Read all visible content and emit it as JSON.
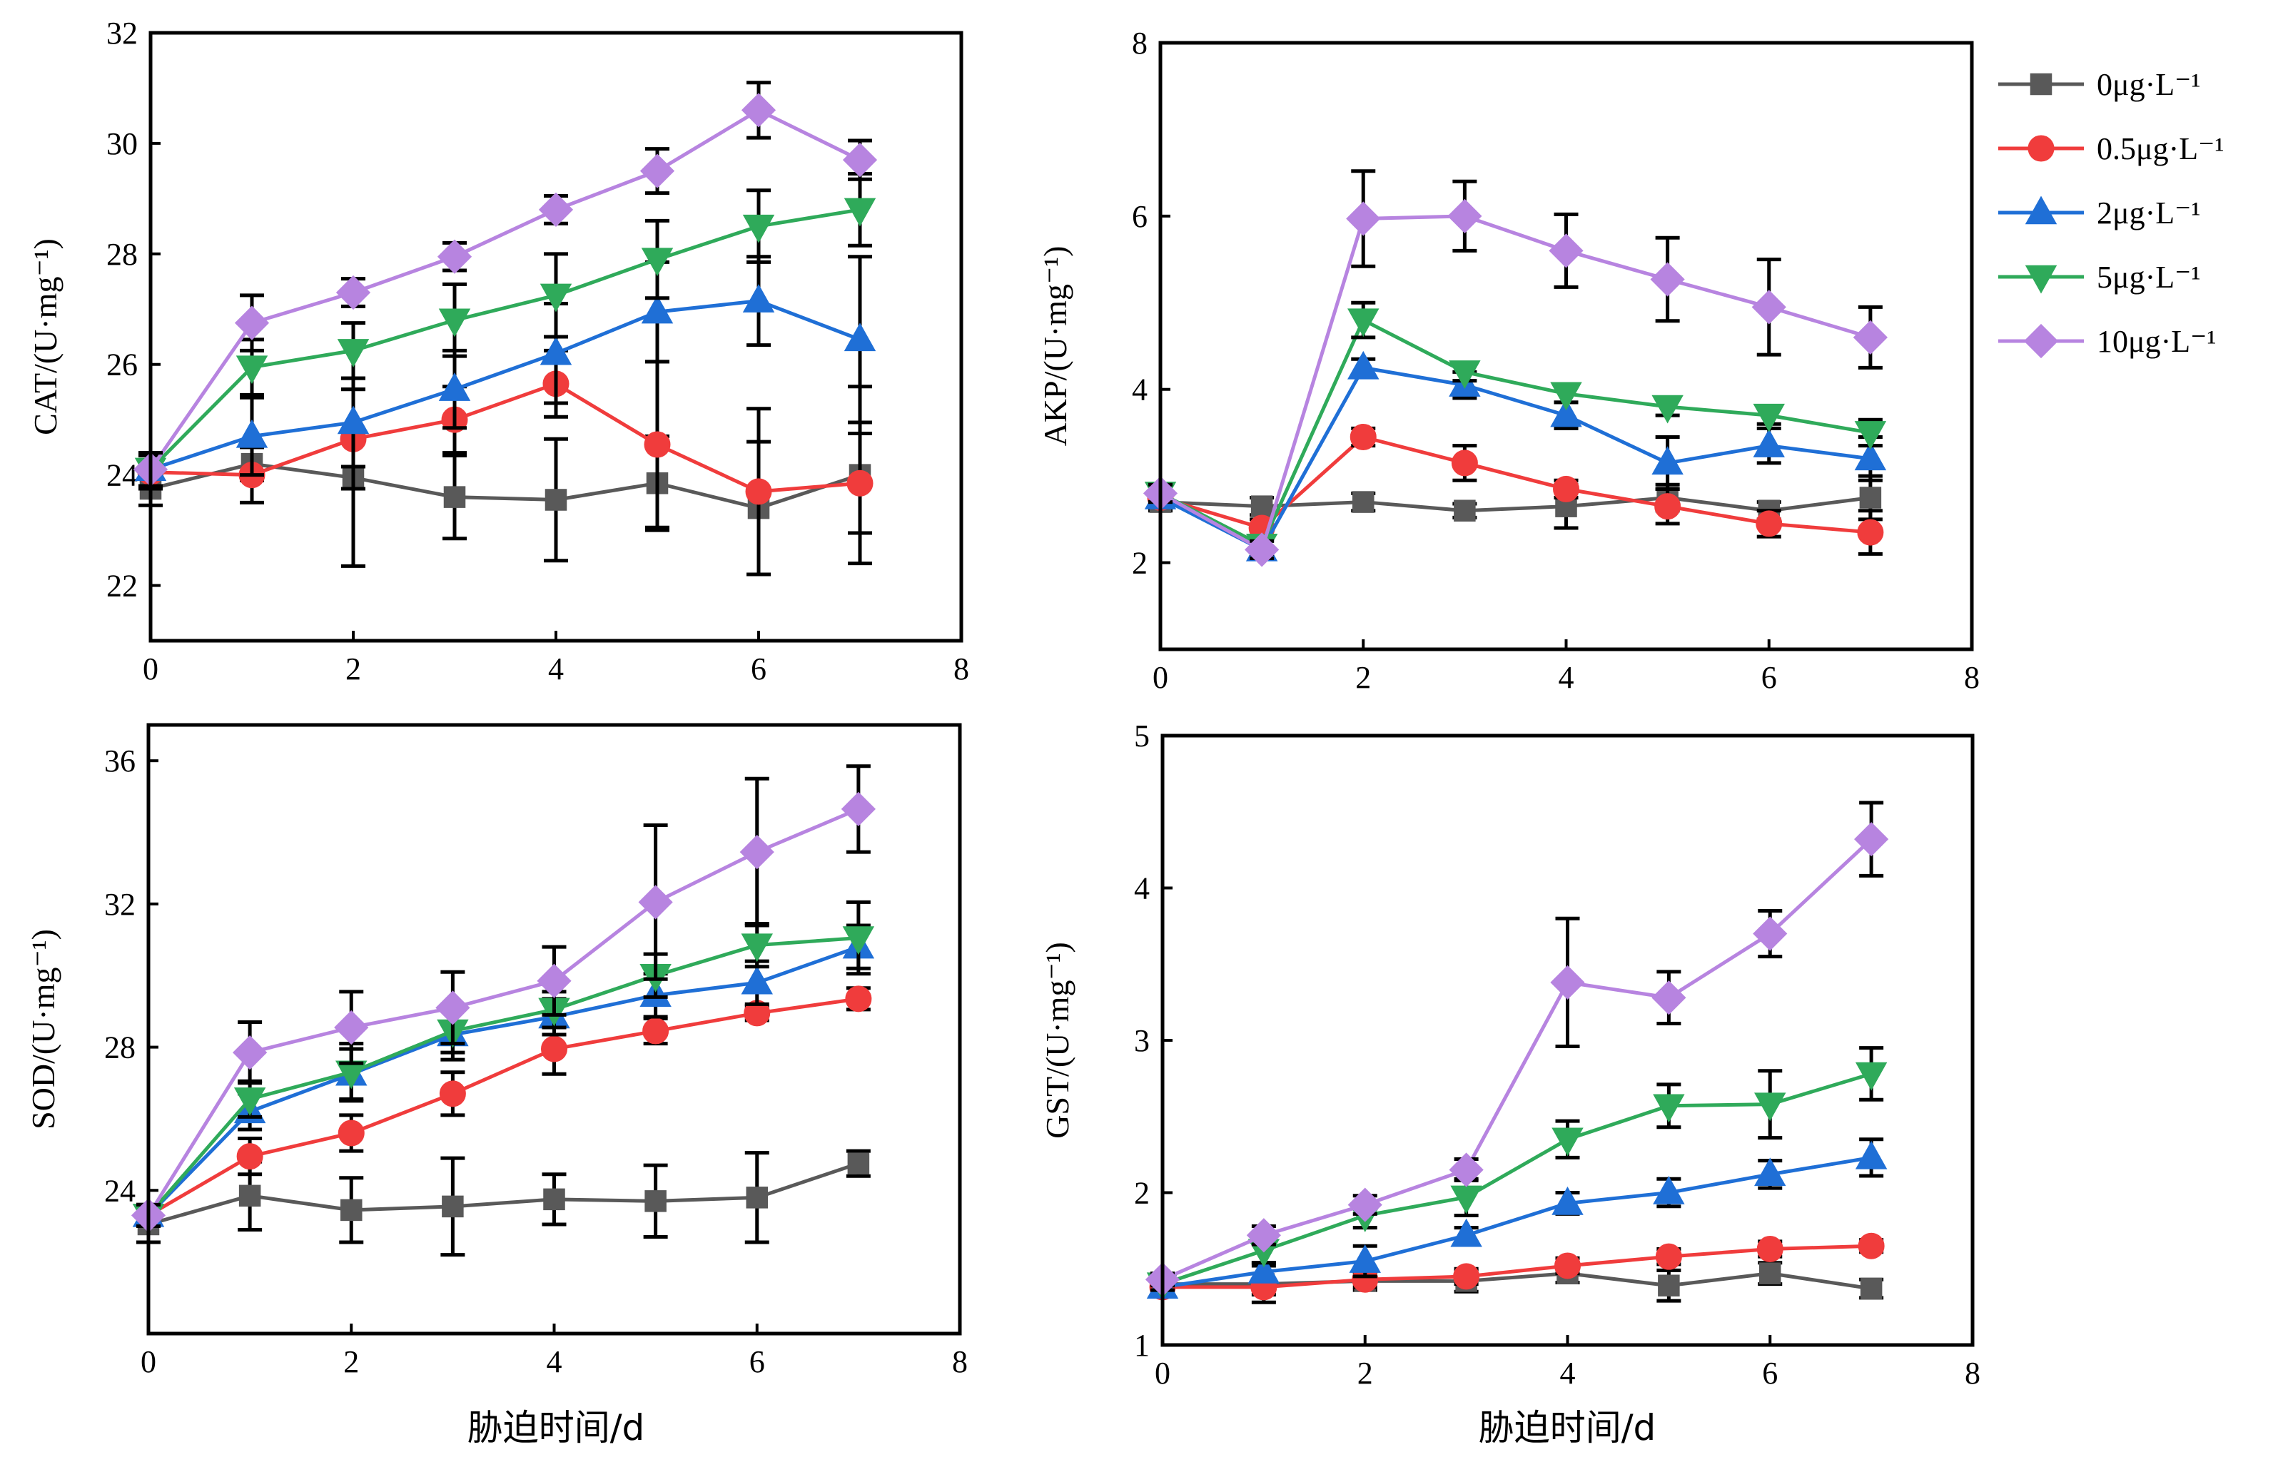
{
  "figure": {
    "shared_xlabel": "胁迫时间/d",
    "legend": {
      "placement": "right",
      "entries": [
        {
          "name": "0μg·L⁻¹",
          "color": "#595959",
          "marker": "square"
        },
        {
          "name": "0.5μg·L⁻¹",
          "color": "#f03c3c",
          "marker": "circle"
        },
        {
          "name": "2μg·L⁻¹",
          "color": "#1f6fd6",
          "marker": "triangle-up"
        },
        {
          "name": "5μg·L⁻¹",
          "color": "#2faa5a",
          "marker": "triangle-down"
        },
        {
          "name": "10μg·L⁻¹",
          "color": "#b784e0",
          "marker": "diamond"
        }
      ]
    }
  },
  "chart_data": [
    {
      "type": "line",
      "panel": "top-left",
      "ylabel": "CAT/(U·mg⁻¹)",
      "xlabel": "",
      "xlim": [
        0,
        8
      ],
      "xticks": [
        0,
        2,
        4,
        6,
        8
      ],
      "ylim": [
        21,
        32
      ],
      "yticks": [
        22,
        24,
        26,
        28,
        30,
        32
      ],
      "x": [
        0,
        1,
        2,
        3,
        4,
        5,
        6,
        7
      ],
      "series": [
        {
          "name": "0μg·L⁻¹",
          "values": [
            23.75,
            24.2,
            23.95,
            23.6,
            23.55,
            23.85,
            23.4,
            24.0
          ],
          "errors": [
            0.3,
            0.3,
            1.6,
            0.75,
            1.1,
            0.85,
            1.2,
            1.6
          ]
        },
        {
          "name": "0.5μg·L⁻¹",
          "values": [
            24.05,
            24.0,
            24.65,
            25.0,
            25.65,
            24.55,
            23.7,
            23.85
          ],
          "errors": [
            0.3,
            0.5,
            0.9,
            0.6,
            0.6,
            1.5,
            1.5,
            0.9
          ]
        },
        {
          "name": "2μg·L⁻¹",
          "values": [
            24.1,
            24.7,
            24.95,
            25.55,
            26.2,
            26.95,
            27.15,
            26.45
          ],
          "errors": [
            0.3,
            0.7,
            0.8,
            0.7,
            0.9,
            0.9,
            0.8,
            1.5
          ]
        },
        {
          "name": "5μg·L⁻¹",
          "values": [
            24.1,
            25.95,
            26.25,
            26.8,
            27.25,
            27.9,
            28.5,
            28.8
          ],
          "errors": [
            0.3,
            0.5,
            0.5,
            0.65,
            0.75,
            0.7,
            0.65,
            0.65
          ]
        },
        {
          "name": "10μg·L⁻¹",
          "values": [
            24.1,
            26.75,
            27.3,
            27.95,
            28.8,
            29.5,
            30.6,
            29.7
          ],
          "errors": [
            0.3,
            0.5,
            0.25,
            0.25,
            0.25,
            0.4,
            0.5,
            0.35
          ]
        }
      ]
    },
    {
      "type": "line",
      "panel": "top-right",
      "ylabel": "AKP/(U·mg⁻¹)",
      "xlabel": "",
      "xlim": [
        0,
        8
      ],
      "xticks": [
        0,
        2,
        4,
        6,
        8
      ],
      "ylim": [
        1,
        8
      ],
      "yticks": [
        2,
        4,
        6,
        8
      ],
      "x": [
        0,
        1,
        2,
        3,
        4,
        5,
        6,
        7
      ],
      "series": [
        {
          "name": "0μg·L⁻¹",
          "values": [
            2.7,
            2.65,
            2.7,
            2.6,
            2.65,
            2.75,
            2.6,
            2.75
          ],
          "errors": [
            0.1,
            0.1,
            0.1,
            0.08,
            0.25,
            0.15,
            0.1,
            0.25
          ]
        },
        {
          "name": "0.5μg·L⁻¹",
          "values": [
            2.75,
            2.4,
            3.45,
            3.15,
            2.85,
            2.65,
            2.45,
            2.35
          ],
          "errors": [
            0.1,
            0.1,
            0.1,
            0.2,
            0.1,
            0.2,
            0.15,
            0.25
          ]
        },
        {
          "name": "2μg·L⁻¹",
          "values": [
            2.75,
            2.15,
            4.25,
            4.05,
            3.7,
            3.15,
            3.35,
            3.2
          ],
          "errors": [
            0.1,
            0.1,
            0.1,
            0.15,
            0.15,
            0.3,
            0.2,
            0.25
          ]
        },
        {
          "name": "5μg·L⁻¹",
          "values": [
            2.8,
            2.2,
            4.8,
            4.2,
            3.95,
            3.8,
            3.7,
            3.5
          ],
          "errors": [
            0.1,
            0.1,
            0.2,
            0.1,
            0.1,
            0.1,
            0.1,
            0.15
          ]
        },
        {
          "name": "10μg·L⁻¹",
          "values": [
            2.8,
            2.15,
            5.97,
            6.0,
            5.6,
            5.27,
            4.95,
            4.6
          ],
          "errors": [
            0.1,
            0.1,
            0.55,
            0.4,
            0.42,
            0.48,
            0.55,
            0.35
          ]
        }
      ]
    },
    {
      "type": "line",
      "panel": "bottom-left",
      "ylabel": "SOD/(U·mg⁻¹)",
      "xlabel": "",
      "xlim": [
        0,
        8
      ],
      "xticks": [
        0,
        2,
        4,
        6,
        8
      ],
      "ylim": [
        20,
        37
      ],
      "yticks": [
        24,
        28,
        32,
        36
      ],
      "x": [
        0,
        1,
        2,
        3,
        4,
        5,
        6,
        7
      ],
      "series": [
        {
          "name": "0μg·L⁻¹",
          "values": [
            23.05,
            23.85,
            23.45,
            23.55,
            23.75,
            23.7,
            23.8,
            24.75
          ],
          "errors": [
            0.5,
            0.95,
            0.9,
            1.35,
            0.7,
            1.0,
            1.25,
            0.35
          ]
        },
        {
          "name": "0.5μg·L⁻¹",
          "values": [
            23.3,
            24.95,
            25.6,
            26.7,
            27.95,
            28.45,
            28.95,
            29.35
          ],
          "errors": [
            0.3,
            0.5,
            0.5,
            0.6,
            0.7,
            0.35,
            0.2,
            0.3
          ]
        },
        {
          "name": "2μg·L⁻¹",
          "values": [
            23.3,
            26.2,
            27.25,
            28.35,
            28.85,
            29.45,
            29.8,
            30.8
          ],
          "errors": [
            0.3,
            0.5,
            0.7,
            0.7,
            0.5,
            0.6,
            0.6,
            0.6
          ]
        },
        {
          "name": "5μg·L⁻¹",
          "values": [
            23.3,
            26.55,
            27.3,
            28.45,
            29.05,
            30.0,
            30.85,
            31.05
          ],
          "errors": [
            0.3,
            0.5,
            0.8,
            0.6,
            0.5,
            0.6,
            0.6,
            1.0
          ]
        },
        {
          "name": "10μg·L⁻¹",
          "values": [
            23.3,
            27.85,
            28.55,
            29.1,
            29.85,
            32.05,
            33.45,
            34.65
          ],
          "errors": [
            0.3,
            0.85,
            1.0,
            1.0,
            0.95,
            2.15,
            2.05,
            1.2
          ]
        }
      ]
    },
    {
      "type": "line",
      "panel": "bottom-right",
      "ylabel": "GST/(U·mg⁻¹)",
      "xlabel": "",
      "xlim": [
        0,
        8
      ],
      "xticks": [
        0,
        2,
        4,
        6,
        8
      ],
      "ylim": [
        1,
        5
      ],
      "yticks": [
        1,
        2,
        3,
        4,
        5
      ],
      "x": [
        0,
        1,
        2,
        3,
        4,
        5,
        6,
        7
      ],
      "series": [
        {
          "name": "0μg·L⁻¹",
          "values": [
            1.4,
            1.4,
            1.42,
            1.42,
            1.47,
            1.39,
            1.47,
            1.37
          ],
          "errors": [
            0.05,
            0.12,
            0.06,
            0.07,
            0.06,
            0.1,
            0.07,
            0.06
          ]
        },
        {
          "name": "0.5μg·L⁻¹",
          "values": [
            1.38,
            1.38,
            1.43,
            1.45,
            1.52,
            1.58,
            1.63,
            1.65
          ],
          "errors": [
            0.04,
            0.05,
            0.05,
            0.05,
            0.05,
            0.05,
            0.05,
            0.04
          ]
        },
        {
          "name": "2μg·L⁻¹",
          "values": [
            1.38,
            1.48,
            1.55,
            1.72,
            1.93,
            2.0,
            2.12,
            2.23
          ],
          "errors": [
            0.04,
            0.06,
            0.1,
            0.05,
            0.07,
            0.09,
            0.09,
            0.12
          ]
        },
        {
          "name": "5μg·L⁻¹",
          "values": [
            1.4,
            1.62,
            1.85,
            1.97,
            2.35,
            2.57,
            2.58,
            2.78
          ],
          "errors": [
            0.04,
            0.08,
            0.08,
            0.12,
            0.12,
            0.14,
            0.22,
            0.17
          ]
        },
        {
          "name": "10μg·L⁻¹",
          "values": [
            1.43,
            1.72,
            1.92,
            2.15,
            3.38,
            3.28,
            3.7,
            4.32
          ],
          "errors": [
            0.04,
            0.06,
            0.06,
            0.07,
            0.42,
            0.17,
            0.15,
            0.24
          ]
        }
      ]
    }
  ]
}
